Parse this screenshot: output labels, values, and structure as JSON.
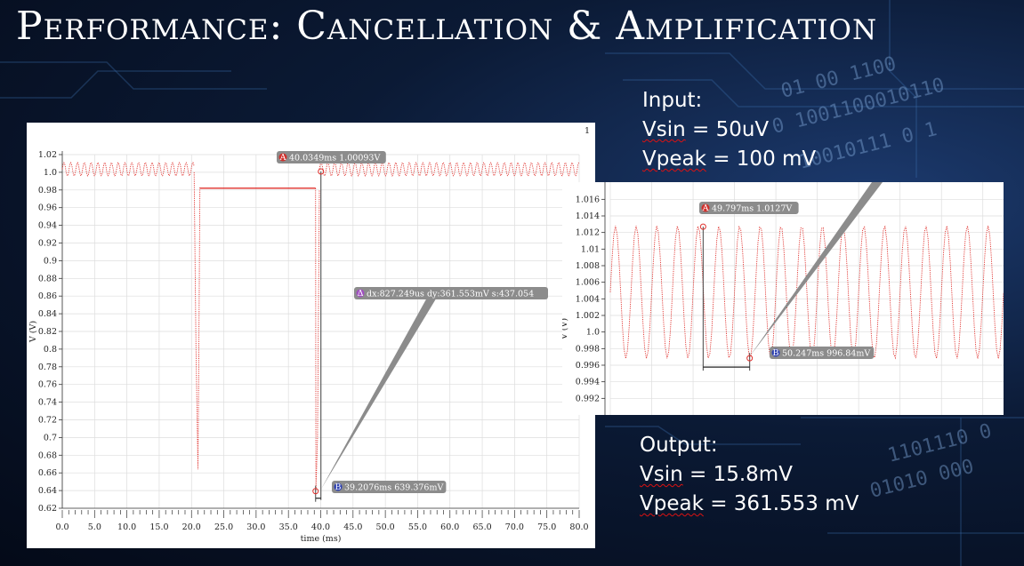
{
  "slide": {
    "title": "Performance: Cancellation & Amplification"
  },
  "input_note": {
    "heading": "Input:",
    "line1_key": "Vsin",
    "line1_rest": " = 50uV",
    "line2_key": "Vpeak",
    "line2_rest": " = 100 mV"
  },
  "output_note": {
    "heading": "Output:",
    "line1_key": "Vsin",
    "line1_rest": " = 15.8mV",
    "line2_key": "Vpeak",
    "line2_rest": " = 361.553 mV"
  },
  "colors": {
    "trace": "#e0302c",
    "marker_a": "#d0302c",
    "marker_b": "#2c3fb0",
    "marker_delta": "#a050c0",
    "label_bg": "#8c8c8c",
    "grid": "#dddddd"
  },
  "chart_data": [
    {
      "type": "line",
      "corner_label": "1",
      "xlabel": "time (ms)",
      "ylabel": "V (V)",
      "xlim": [
        0,
        80
      ],
      "ylim": [
        0.62,
        1.02
      ],
      "grid": true,
      "x_ticks": [
        "0.0",
        "5.0",
        "10.0",
        "15.0",
        "20.0",
        "25.0",
        "30.0",
        "35.0",
        "40.0",
        "45.0",
        "50.0",
        "55.0",
        "60.0",
        "65.0",
        "70.0",
        "75.0",
        "80.0"
      ],
      "y_ticks": [
        "0.62",
        "0.64",
        "0.66",
        "0.68",
        "0.7",
        "0.72",
        "0.74",
        "0.76",
        "0.78",
        "0.8",
        "0.82",
        "0.84",
        "0.86",
        "0.88",
        "0.9",
        "0.92",
        "0.94",
        "0.96",
        "0.98",
        "1.0",
        "1.02"
      ],
      "series": [
        {
          "segments": [
            {
              "kind": "sine",
              "x0": 0,
              "x1": 20.4,
              "center": 1.0035,
              "amplitude": 0.0075,
              "period_ms": 1.05
            },
            {
              "kind": "path",
              "points": [
                [
                  20.4,
                  1.0
                ],
                [
                  20.7,
                  0.8
                ],
                [
                  21.0,
                  0.664
                ],
                [
                  21.1,
                  0.75
                ],
                [
                  21.3,
                  0.983
                ]
              ]
            },
            {
              "kind": "flat",
              "x0": 21.3,
              "x1": 39.2,
              "y": 0.982
            },
            {
              "kind": "path",
              "points": [
                [
                  39.2,
                  0.982
                ],
                [
                  39.25,
                  0.64
                ],
                [
                  39.5,
                  0.7
                ],
                [
                  39.8,
                  0.98
                ]
              ]
            },
            {
              "kind": "sine",
              "x0": 39.8,
              "x1": 80,
              "center": 1.0035,
              "amplitude": 0.0075,
              "period_ms": 1.05
            }
          ]
        }
      ],
      "markers": [
        {
          "id": "A",
          "symbol": "A",
          "label": "40.0349ms 1.00093V",
          "x": 40.0349,
          "y": 1.00093
        },
        {
          "id": "B",
          "symbol": "B",
          "label": "39.2076ms 639.376mV",
          "x": 39.2076,
          "y": 0.639376
        }
      ],
      "delta": {
        "symbol": "Δ",
        "label": "dx:827.249us dy:361.553mV s:437.054"
      }
    },
    {
      "type": "line",
      "ylabel": "V (V)",
      "xlim": [
        48.9,
        52.7
      ],
      "ylim": [
        0.99,
        1.017
      ],
      "grid": true,
      "y_ticks": [
        "0.992",
        "0.994",
        "0.996",
        "0.998",
        "1.0",
        "1.002",
        "1.004",
        "1.006",
        "1.008",
        "1.01",
        "1.012",
        "1.014",
        "1.016"
      ],
      "series": [
        {
          "segments": [
            {
              "kind": "sine",
              "x0": 48.9,
              "x1": 52.7,
              "center": 1.0048,
              "amplitude": 0.008,
              "period_ms": 0.2
            }
          ]
        }
      ],
      "markers": [
        {
          "id": "A",
          "symbol": "A",
          "label": "49.797ms 1.0127V",
          "x": 49.797,
          "y": 1.0127
        },
        {
          "id": "B",
          "symbol": "B",
          "label": "50.247ms 996.84mV",
          "x": 50.247,
          "y": 0.99684
        }
      ]
    }
  ]
}
